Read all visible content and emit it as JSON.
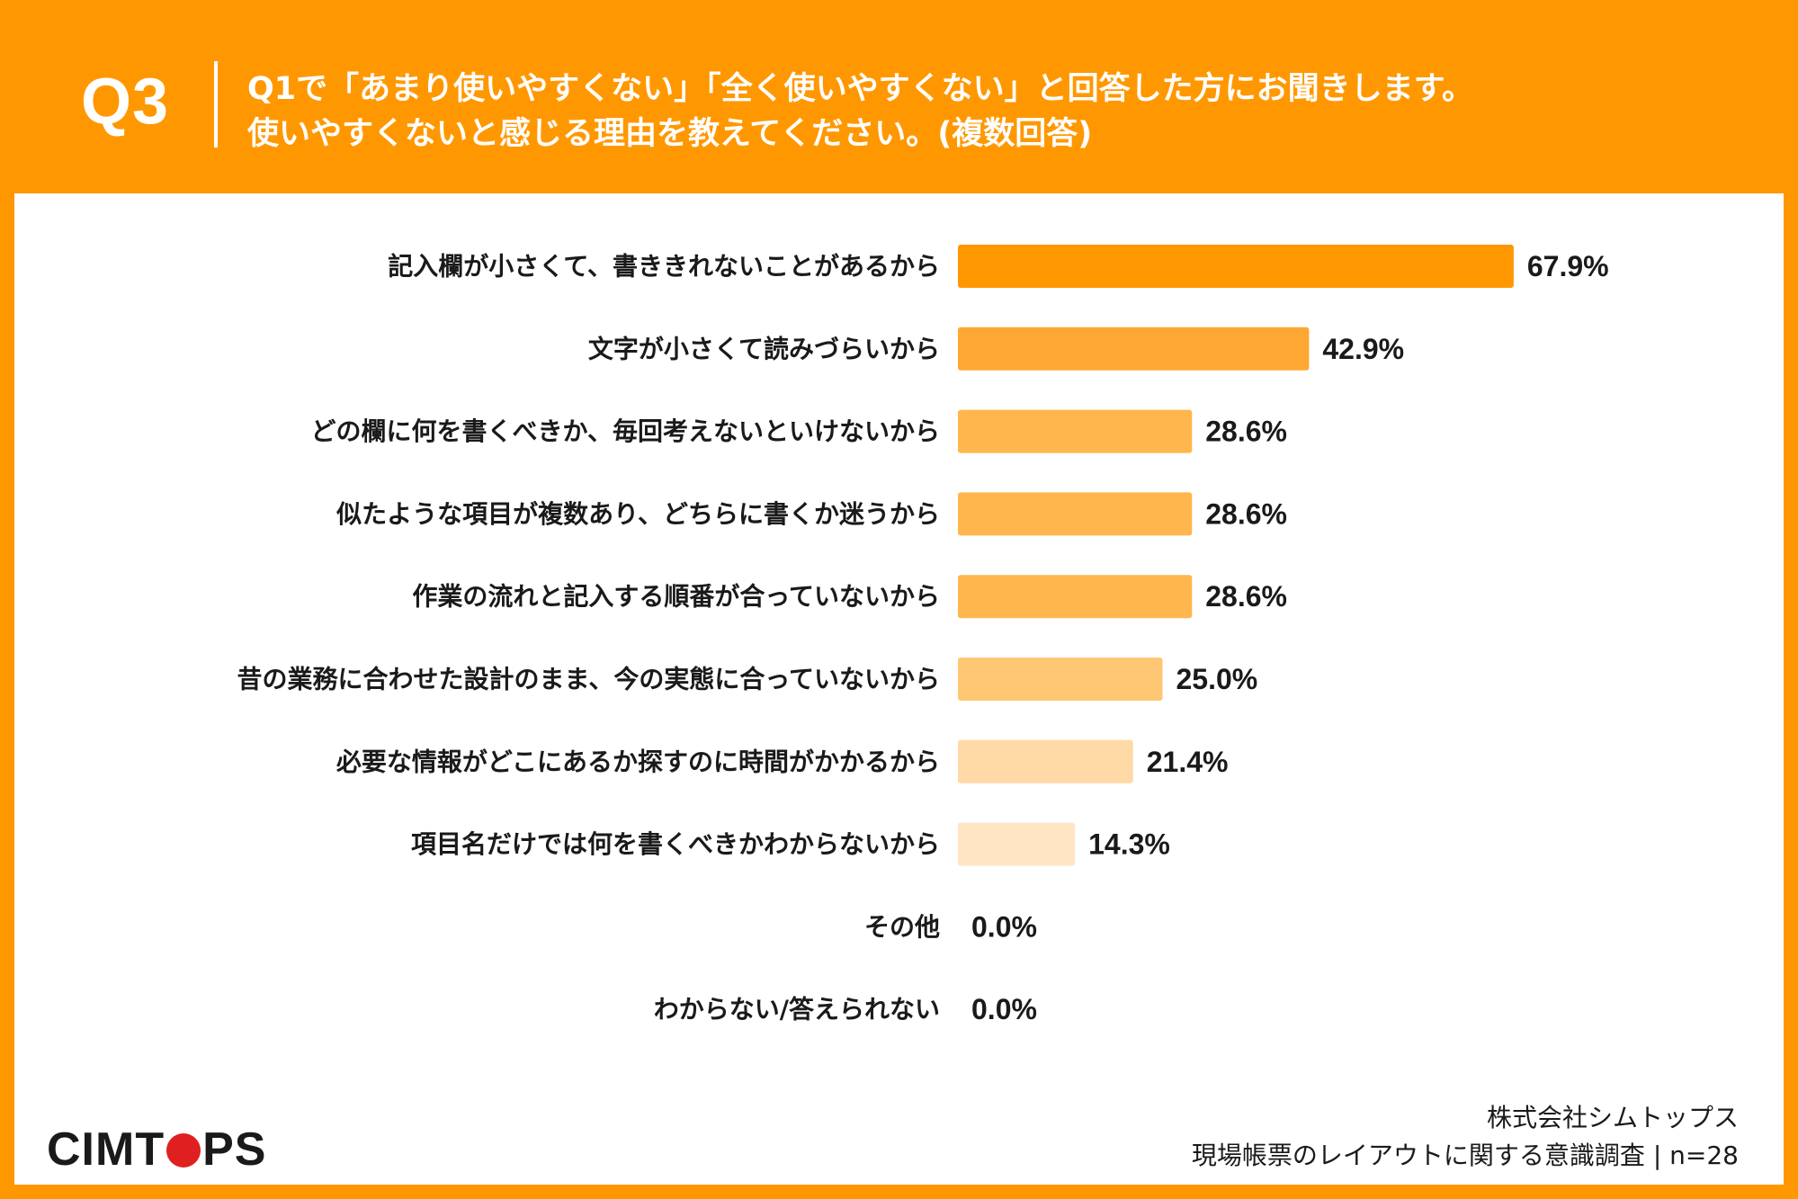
{
  "header": {
    "q_label": "Q3",
    "question_line1": "Q1で「あまり使いやすくない」「全く使いやすくない」と回答した方にお聞きします。",
    "question_line2": "使いやすくないと感じる理由を教えてください。(複数回答)"
  },
  "footer": {
    "company": "株式会社シムトップス",
    "survey": "現場帳票のレイアウトに関する意識調査 | n=28",
    "logo_left": "CIMT",
    "logo_right": "PS"
  },
  "colors": {
    "background": "#ff9800",
    "bar_shades": [
      "#ff9800",
      "#ffa733",
      "#ffb64d",
      "#ffb64d",
      "#ffb64d",
      "#ffc773",
      "#ffd9a6",
      "#ffe5c4"
    ]
  },
  "chart_data": {
    "type": "bar",
    "orientation": "horizontal",
    "unit": "%",
    "categories": [
      "記入欄が小さくて、書ききれないことがあるから",
      "文字が小さくて読みづらいから",
      "どの欄に何を書くべきか、毎回考えないといけないから",
      "似たような項目が複数あり、どちらに書くか迷うから",
      "作業の流れと記入する順番が合っていないから",
      "昔の業務に合わせた設計のまま、今の実態に合っていないから",
      "必要な情報がどこにあるか探すのに時間がかかるから",
      "項目名だけでは何を書くべきかわからないから",
      "その他",
      "わからない/答えられない"
    ],
    "values": [
      67.9,
      42.9,
      28.6,
      28.6,
      28.6,
      25.0,
      21.4,
      14.3,
      0.0,
      0.0
    ],
    "value_labels": [
      "67.9%",
      "42.9%",
      "28.6%",
      "28.6%",
      "28.6%",
      "25.0%",
      "21.4%",
      "14.3%",
      "0.0%",
      "0.0%"
    ],
    "xlim": [
      0,
      100
    ],
    "grid": false,
    "legend": "none"
  }
}
